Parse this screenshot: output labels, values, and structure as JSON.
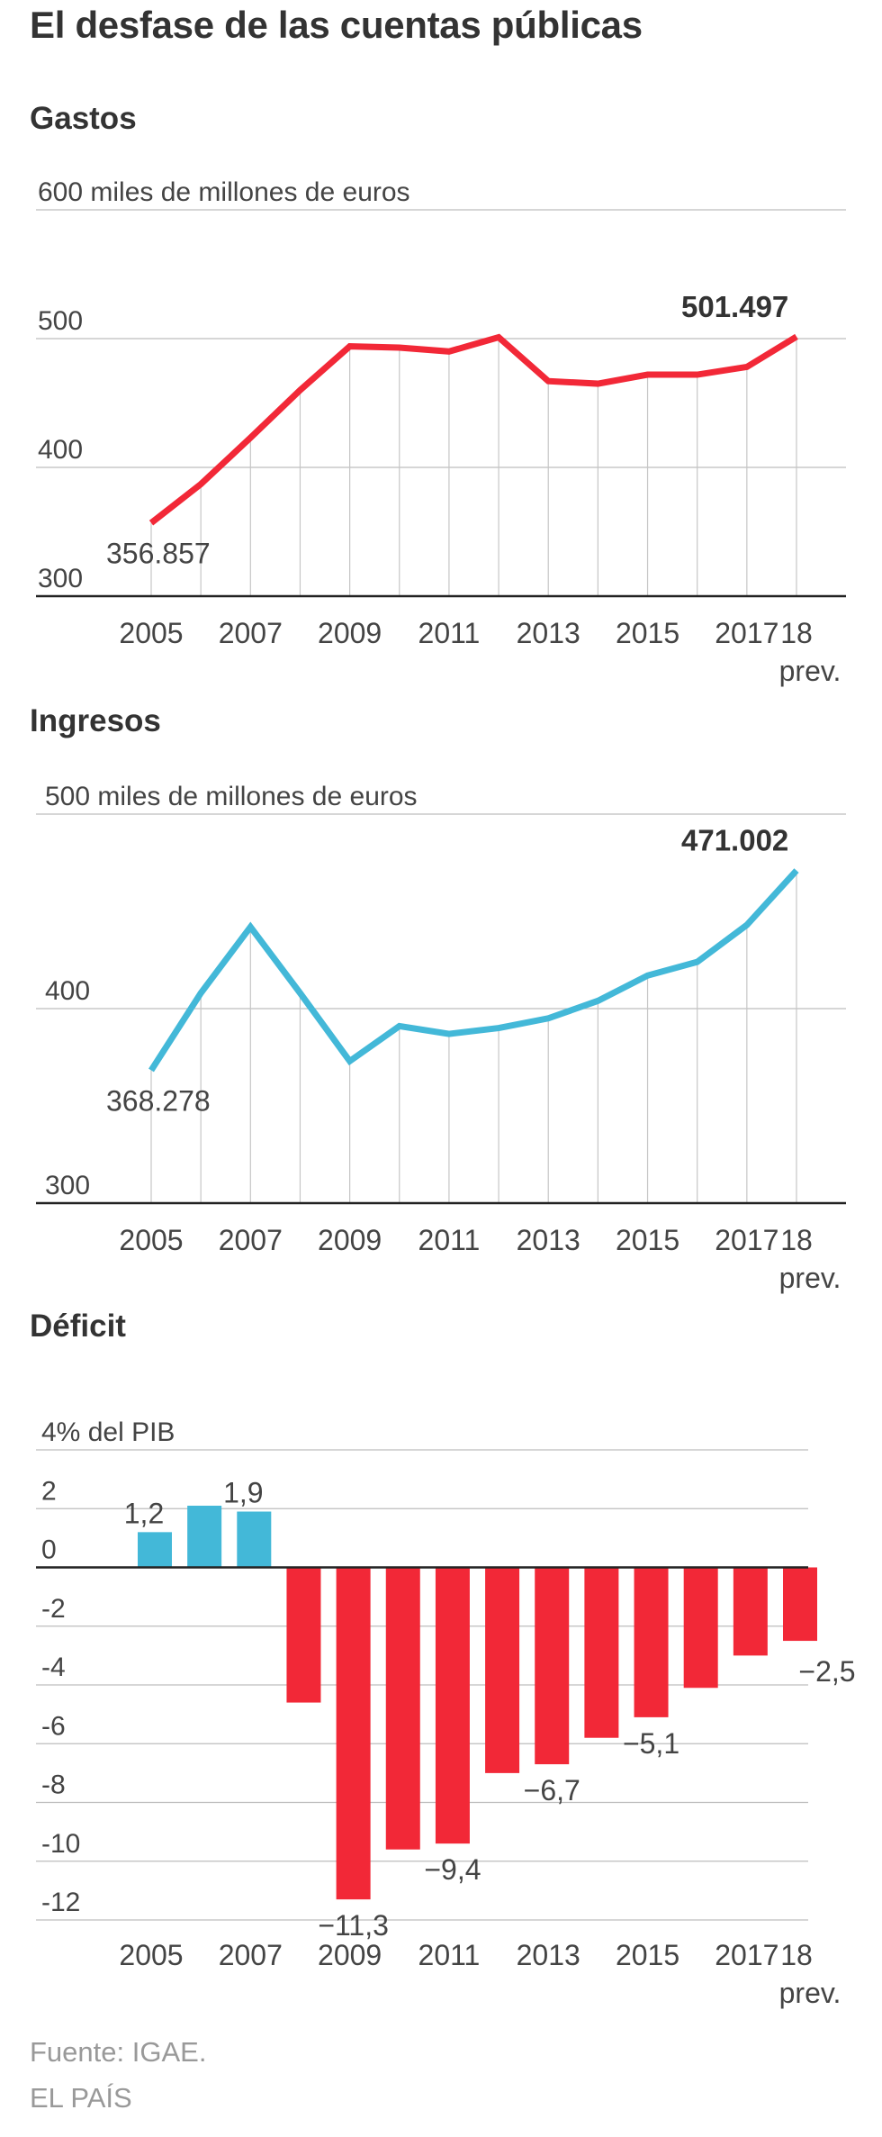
{
  "title": "El desfase de las cuentas públicas",
  "source": "Fuente: IGAE.",
  "credit": "EL PAÍS",
  "colors": {
    "gastos": "#f22837",
    "ingresos": "#43b8d8",
    "positive": "#43b8d8",
    "negative": "#f22837"
  },
  "chart_data": [
    {
      "id": "gastos",
      "type": "line",
      "title": "Gastos",
      "unit_label": "miles de millones de euros",
      "x": [
        "2005",
        "2006",
        "2007",
        "2008",
        "2009",
        "2010",
        "2011",
        "2012",
        "2013",
        "2014",
        "2015",
        "2016",
        "2017",
        "2018"
      ],
      "series": [
        {
          "values": [
            356.857,
            387,
            423,
            460,
            494,
            493,
            490,
            501,
            467,
            465,
            472,
            472,
            478,
            501.497
          ]
        }
      ],
      "ylim": [
        300,
        600
      ],
      "yticks": [
        300,
        400,
        500,
        600
      ],
      "ytick_labels": [
        "300",
        "400",
        "500",
        "600"
      ],
      "xtick_labels": [
        "2005",
        "2007",
        "2009",
        "2011",
        "2013",
        "2015",
        "2017",
        "18"
      ],
      "xtick_values": [
        "2005",
        "2007",
        "2009",
        "2011",
        "2013",
        "2015",
        "2017",
        "2018"
      ],
      "xtick_sublabel": "prev.",
      "annotations": [
        {
          "x": "2005",
          "label": "356.857",
          "bold": false
        },
        {
          "x": "2018",
          "label": "501.497",
          "bold": true
        }
      ],
      "grid": true
    },
    {
      "id": "ingresos",
      "type": "line",
      "title": "Ingresos",
      "unit_label": "miles de millones de euros",
      "x": [
        "2005",
        "2006",
        "2007",
        "2008",
        "2009",
        "2010",
        "2011",
        "2012",
        "2013",
        "2014",
        "2015",
        "2016",
        "2017",
        "2018"
      ],
      "series": [
        {
          "values": [
            368.278,
            408,
            442,
            408,
            373,
            391,
            387,
            390,
            395,
            404,
            417,
            424,
            443,
            471.002
          ]
        }
      ],
      "ylim": [
        300,
        500
      ],
      "yticks": [
        300,
        400,
        500
      ],
      "ytick_labels": [
        "300",
        "400",
        "500"
      ],
      "xtick_labels": [
        "2005",
        "2007",
        "2009",
        "2011",
        "2013",
        "2015",
        "2017",
        "18"
      ],
      "xtick_values": [
        "2005",
        "2007",
        "2009",
        "2011",
        "2013",
        "2015",
        "2017",
        "2018"
      ],
      "xtick_sublabel": "prev.",
      "annotations": [
        {
          "x": "2005",
          "label": "368.278",
          "bold": false
        },
        {
          "x": "2018",
          "label": "471.002",
          "bold": true
        }
      ],
      "grid": true
    },
    {
      "id": "deficit",
      "type": "bar",
      "title": "Déficit",
      "unit_label": "% del PIB",
      "categories": [
        "2005",
        "2006",
        "2007",
        "2008",
        "2009",
        "2010",
        "2011",
        "2012",
        "2013",
        "2014",
        "2015",
        "2016",
        "2017",
        "2018"
      ],
      "values": [
        1.2,
        2.1,
        1.9,
        -4.6,
        -11.3,
        -9.6,
        -9.4,
        -7.0,
        -6.7,
        -5.8,
        -5.1,
        -4.1,
        -3.0,
        -2.5
      ],
      "ylim": [
        -12,
        4
      ],
      "yticks": [
        -12,
        -10,
        -8,
        -6,
        -4,
        -2,
        0,
        2,
        4
      ],
      "ytick_labels": [
        "-12",
        "-10",
        "-8",
        "-6",
        "-4",
        "-2",
        "0",
        "2",
        "4"
      ],
      "xtick_labels": [
        "2005",
        "2007",
        "2009",
        "2011",
        "2013",
        "2015",
        "2017",
        "18"
      ],
      "xtick_values": [
        "2005",
        "2007",
        "2009",
        "2011",
        "2013",
        "2015",
        "2017",
        "2018"
      ],
      "xtick_sublabel": "prev.",
      "annotations": [
        {
          "x": "2005",
          "label": "1,2"
        },
        {
          "x": "2007",
          "label": "1,9"
        },
        {
          "x": "2009",
          "label": "−11,3"
        },
        {
          "x": "2011",
          "label": "−9,4"
        },
        {
          "x": "2013",
          "label": "−6,7"
        },
        {
          "x": "2015",
          "label": "−5,1"
        },
        {
          "x": "2018",
          "label": "−2,5"
        }
      ],
      "grid": true
    }
  ]
}
